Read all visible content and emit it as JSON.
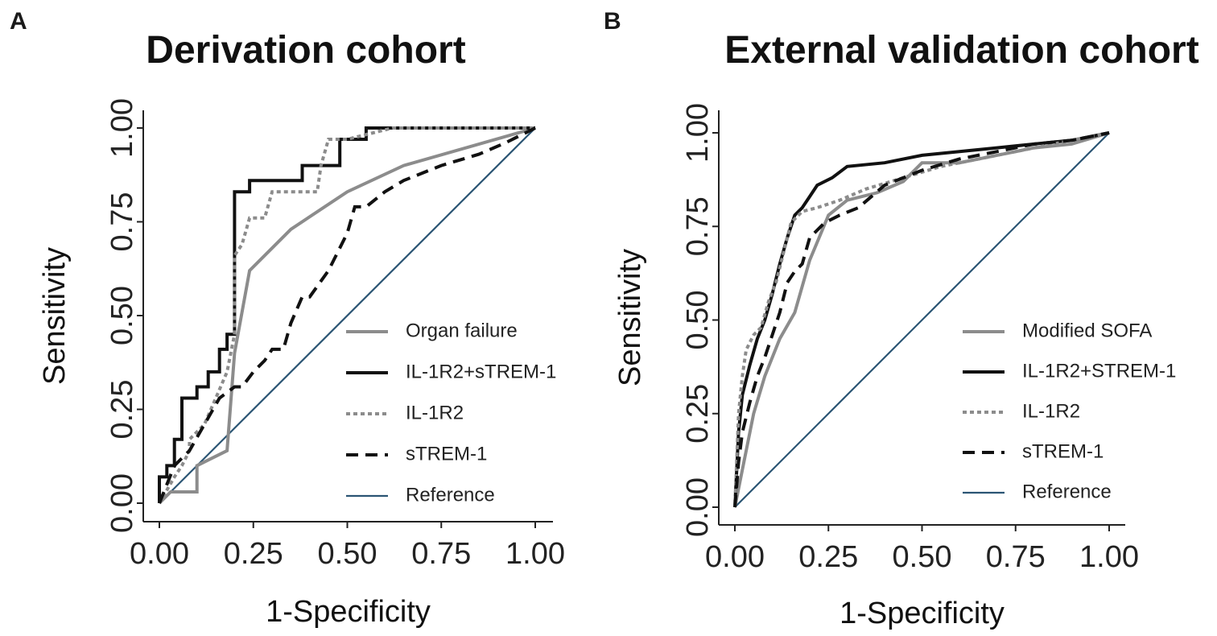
{
  "panels": [
    {
      "label": "A",
      "title": "Derivation cohort"
    },
    {
      "label": "B",
      "title": "External validation cohort"
    }
  ],
  "colors": {
    "black": "#111111",
    "gray": "#8c8c8c",
    "reference": "#2b5574"
  },
  "chart_data": [
    {
      "type": "line",
      "title": "Derivation cohort",
      "xlabel": "1-Specificity",
      "ylabel": "Sensitivity",
      "xlim": [
        0,
        1
      ],
      "ylim": [
        0,
        1
      ],
      "xticks": [
        "0.00",
        "0.25",
        "0.50",
        "0.75",
        "1.00"
      ],
      "yticks": [
        "0.00",
        "0.25",
        "0.50",
        "0.75",
        "1.00"
      ],
      "legend_position": "bottom-right",
      "series": [
        {
          "name": "Organ failure",
          "style": "solid-gray",
          "x": [
            0,
            0.03,
            0.1,
            0.1,
            0.18,
            0.2,
            0.24,
            0.35,
            0.5,
            0.65,
            1.0
          ],
          "y": [
            0,
            0.03,
            0.03,
            0.1,
            0.14,
            0.4,
            0.62,
            0.73,
            0.83,
            0.9,
            1.0
          ]
        },
        {
          "name": "IL-1R2+sTREM-1",
          "style": "solid-black",
          "x": [
            0,
            0,
            0.02,
            0.02,
            0.04,
            0.04,
            0.06,
            0.06,
            0.1,
            0.1,
            0.13,
            0.13,
            0.16,
            0.16,
            0.18,
            0.18,
            0.2,
            0.2,
            0.24,
            0.24,
            0.38,
            0.38,
            0.48,
            0.48,
            0.55,
            0.55,
            1.0
          ],
          "y": [
            0,
            0.07,
            0.07,
            0.1,
            0.1,
            0.17,
            0.17,
            0.28,
            0.28,
            0.31,
            0.31,
            0.35,
            0.35,
            0.41,
            0.41,
            0.45,
            0.45,
            0.83,
            0.83,
            0.86,
            0.86,
            0.9,
            0.9,
            0.97,
            0.97,
            1.0,
            1.0
          ]
        },
        {
          "name": "IL-1R2",
          "style": "dotted-gray",
          "x": [
            0,
            0.04,
            0.06,
            0.08,
            0.08,
            0.12,
            0.15,
            0.18,
            0.2,
            0.2,
            0.22,
            0.24,
            0.28,
            0.3,
            0.42,
            0.43,
            0.45,
            0.5,
            0.62,
            1.0
          ],
          "y": [
            0,
            0.07,
            0.1,
            0.14,
            0.17,
            0.21,
            0.28,
            0.35,
            0.45,
            0.66,
            0.69,
            0.76,
            0.76,
            0.83,
            0.83,
            0.9,
            0.97,
            0.97,
            1.0,
            1.0
          ]
        },
        {
          "name": "sTREM-1",
          "style": "dashed-black",
          "x": [
            0,
            0.04,
            0.08,
            0.12,
            0.16,
            0.2,
            0.22,
            0.25,
            0.28,
            0.3,
            0.33,
            0.35,
            0.38,
            0.4,
            0.45,
            0.5,
            0.52,
            0.55,
            0.6,
            0.65,
            0.75,
            0.85,
            0.92,
            1.0
          ],
          "y": [
            0,
            0.1,
            0.14,
            0.21,
            0.28,
            0.31,
            0.31,
            0.35,
            0.38,
            0.41,
            0.41,
            0.48,
            0.55,
            0.55,
            0.62,
            0.72,
            0.79,
            0.79,
            0.83,
            0.86,
            0.9,
            0.93,
            0.96,
            1.0
          ]
        },
        {
          "name": "Reference",
          "style": "solid-blue",
          "x": [
            0,
            1
          ],
          "y": [
            0,
            1
          ]
        }
      ]
    },
    {
      "type": "line",
      "title": "External validation cohort",
      "xlabel": "1-Specificity",
      "ylabel": "Sensitivity",
      "xlim": [
        0,
        1
      ],
      "ylim": [
        0,
        1
      ],
      "xticks": [
        "0.00",
        "0.25",
        "0.50",
        "0.75",
        "1.00"
      ],
      "yticks": [
        "0.00",
        "0.25",
        "0.50",
        "0.75",
        "1.00"
      ],
      "legend_position": "bottom-right",
      "series": [
        {
          "name": "Modified SOFA",
          "style": "solid-gray",
          "x": [
            0,
            0.02,
            0.05,
            0.08,
            0.12,
            0.16,
            0.2,
            0.25,
            0.3,
            0.38,
            0.45,
            0.5,
            0.6,
            0.7,
            0.8,
            0.9,
            1.0
          ],
          "y": [
            0,
            0.1,
            0.25,
            0.35,
            0.45,
            0.52,
            0.66,
            0.78,
            0.82,
            0.84,
            0.87,
            0.92,
            0.92,
            0.94,
            0.96,
            0.97,
            1.0
          ]
        },
        {
          "name": "IL-1R2+STREM-1",
          "style": "solid-black",
          "x": [
            0,
            0.01,
            0.02,
            0.04,
            0.06,
            0.08,
            0.1,
            0.12,
            0.14,
            0.16,
            0.18,
            0.2,
            0.22,
            0.26,
            0.3,
            0.4,
            0.5,
            0.6,
            0.7,
            0.8,
            0.9,
            1.0
          ],
          "y": [
            0,
            0.2,
            0.3,
            0.38,
            0.45,
            0.5,
            0.57,
            0.65,
            0.72,
            0.78,
            0.8,
            0.83,
            0.86,
            0.88,
            0.91,
            0.92,
            0.94,
            0.95,
            0.96,
            0.97,
            0.98,
            1.0
          ]
        },
        {
          "name": "IL-1R2",
          "style": "dotted-gray",
          "x": [
            0,
            0.01,
            0.02,
            0.03,
            0.05,
            0.07,
            0.09,
            0.11,
            0.13,
            0.15,
            0.18,
            0.22,
            0.28,
            0.35,
            0.45,
            0.55,
            0.7,
            0.85,
            1.0
          ],
          "y": [
            0,
            0.25,
            0.35,
            0.42,
            0.46,
            0.48,
            0.55,
            0.6,
            0.68,
            0.76,
            0.79,
            0.8,
            0.82,
            0.85,
            0.88,
            0.91,
            0.94,
            0.97,
            1.0
          ]
        },
        {
          "name": "sTREM-1",
          "style": "dashed-black",
          "x": [
            0,
            0.01,
            0.02,
            0.04,
            0.06,
            0.08,
            0.1,
            0.12,
            0.14,
            0.16,
            0.18,
            0.2,
            0.24,
            0.28,
            0.33,
            0.4,
            0.5,
            0.6,
            0.7,
            0.8,
            0.9,
            1.0
          ],
          "y": [
            0,
            0.12,
            0.2,
            0.28,
            0.35,
            0.4,
            0.46,
            0.52,
            0.6,
            0.63,
            0.65,
            0.72,
            0.76,
            0.78,
            0.8,
            0.86,
            0.9,
            0.93,
            0.95,
            0.97,
            0.98,
            1.0
          ]
        },
        {
          "name": "Reference",
          "style": "solid-blue",
          "x": [
            0,
            1
          ],
          "y": [
            0,
            1
          ]
        }
      ]
    }
  ]
}
